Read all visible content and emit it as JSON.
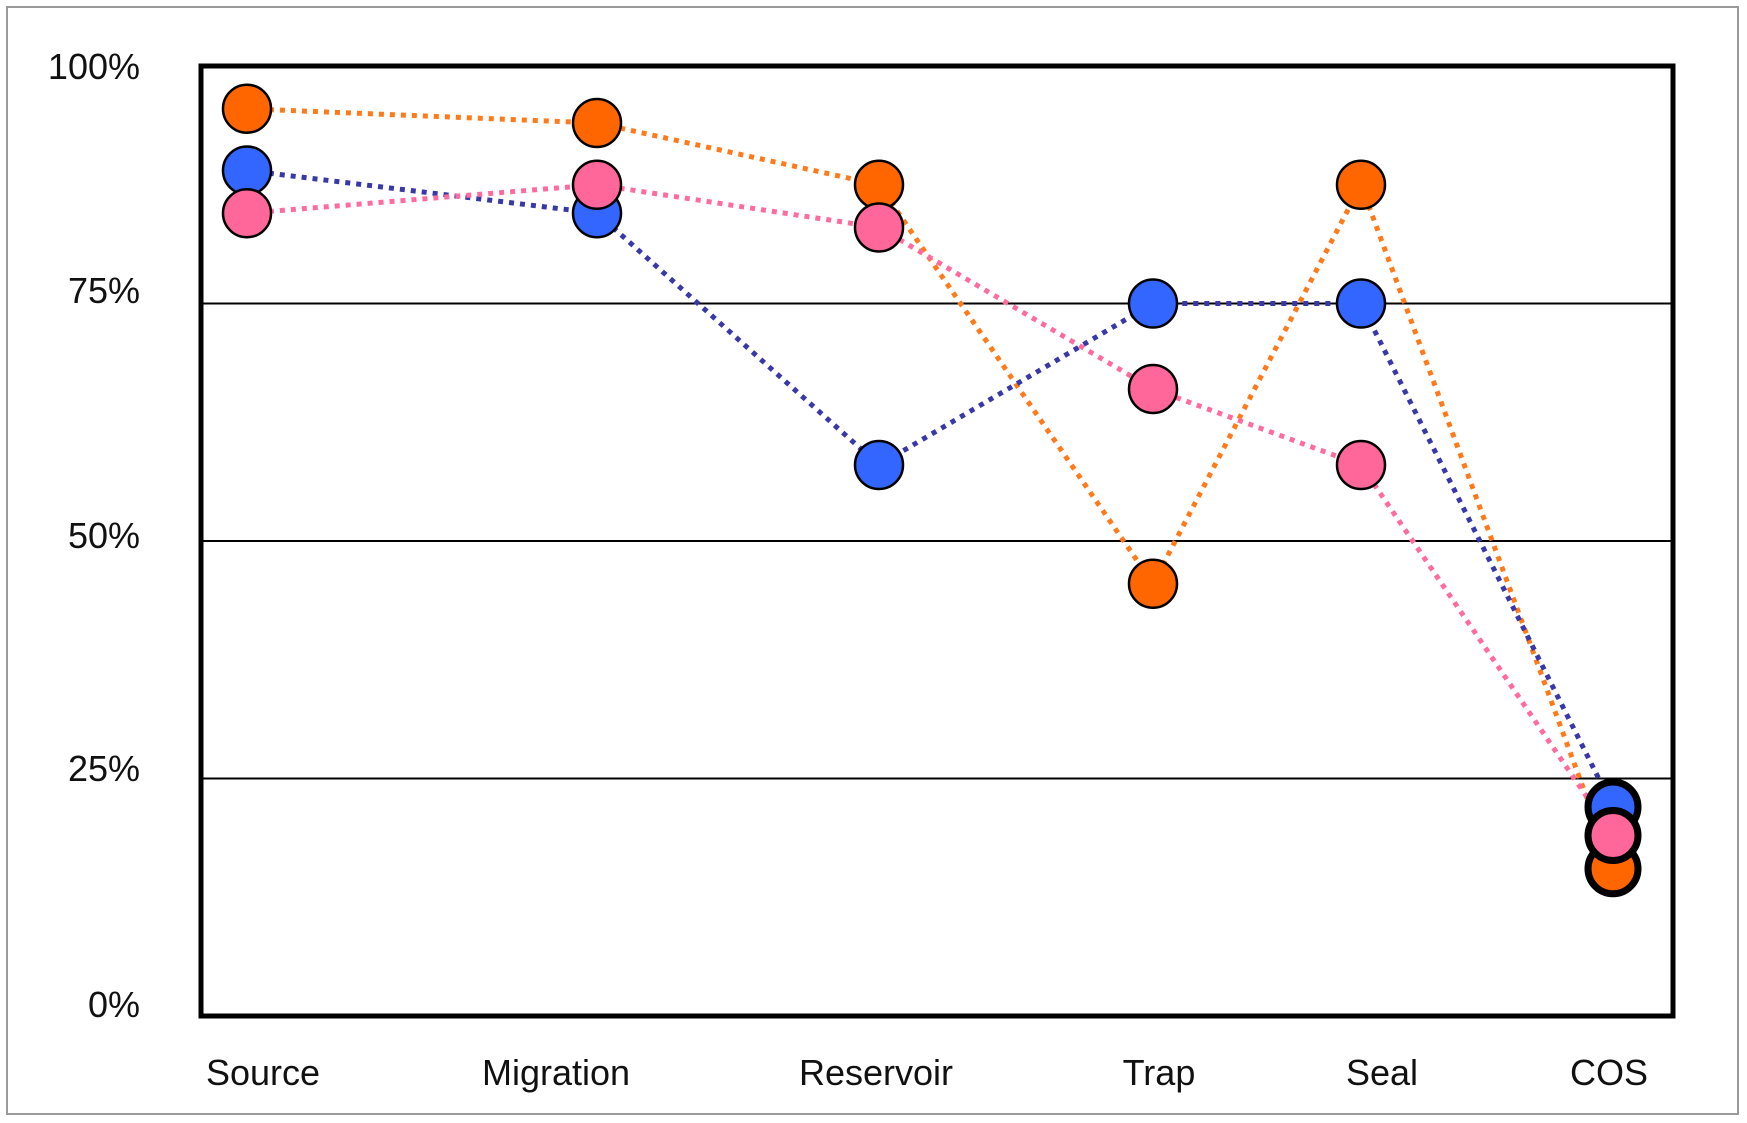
{
  "chart_data": {
    "type": "line",
    "categories": [
      "Source",
      "Migration",
      "Reservoir",
      "Trap",
      "Seal",
      "COS"
    ],
    "y_ticks": [
      "0%",
      "25%",
      "50%",
      "75%",
      "100%"
    ],
    "ylim": [
      0,
      100
    ],
    "grid": true,
    "series": [
      {
        "color": "#ff6600",
        "line_color": "#ff7a1a",
        "values": [
          95.5,
          94,
          87.5,
          45.5,
          87.5,
          15.5
        ]
      },
      {
        "color": "#3366ff",
        "line_color": "#3838a8",
        "values": [
          89,
          84.5,
          58,
          75,
          75,
          22
        ]
      },
      {
        "color": "#ff6699",
        "line_color": "#ff6b9e",
        "values": [
          84.5,
          87.5,
          83,
          66,
          58,
          19
        ]
      }
    ]
  }
}
